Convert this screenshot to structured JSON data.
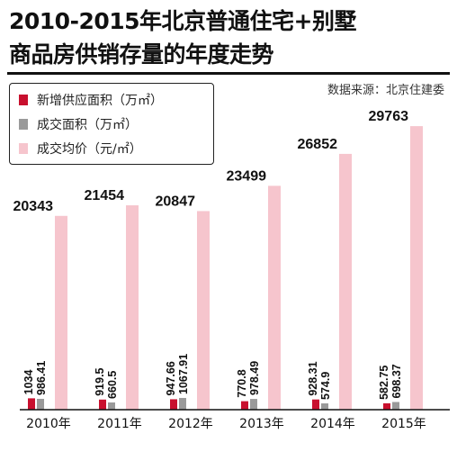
{
  "title_line1": "2010-2015年北京普通住宅+别墅",
  "title_line2": "商品房供销存量的年度走势",
  "source": "数据来源：北京住建委",
  "legend": [
    {
      "label": "新增供应面积（万㎡）",
      "color": "#c8102e"
    },
    {
      "label": "成交面积（万㎡）",
      "color": "#9a9a9a"
    },
    {
      "label": "成交均价（元/㎡）",
      "color": "#f6c5cd"
    }
  ],
  "chart_data": {
    "type": "bar",
    "categories": [
      "2010年",
      "2011年",
      "2012年",
      "2013年",
      "2014年",
      "2015年"
    ],
    "series": [
      {
        "name": "新增供应面积（万㎡）",
        "values": [
          1034,
          919.5,
          947.66,
          770.8,
          928.31,
          582.75
        ],
        "labels": [
          "1034",
          "919.5",
          "947.66",
          "770.8",
          "928.31",
          "582.75"
        ],
        "color": "#c8102e"
      },
      {
        "name": "成交面积（万㎡）",
        "values": [
          986.41,
          660.5,
          1067.91,
          978.49,
          574.9,
          698.37
        ],
        "labels": [
          "986.41",
          "660.5",
          "1067.91",
          "978.49",
          "574.9",
          "698.37"
        ],
        "color": "#9a9a9a"
      },
      {
        "name": "成交均价（元/㎡）",
        "values": [
          20343,
          21454,
          20847,
          23499,
          26852,
          29763
        ],
        "labels": [
          "20343",
          "21454",
          "20847",
          "23499",
          "26852",
          "29763"
        ],
        "color": "#f6c5cd"
      }
    ]
  }
}
